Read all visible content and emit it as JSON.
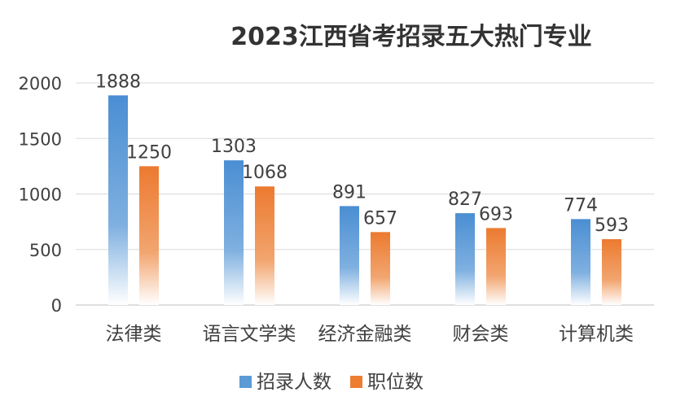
{
  "chart_data": {
    "type": "bar",
    "title": "2023江西省考招录五大热门专业",
    "categories": [
      "法律类",
      "语言文学类",
      "经济金融类",
      "财会类",
      "计算机类"
    ],
    "series": [
      {
        "name": "招录人数",
        "values": [
          1888,
          1303,
          891,
          827,
          774
        ],
        "color": "#5B9BD5"
      },
      {
        "name": "职位数",
        "values": [
          1250,
          1068,
          657,
          693,
          593
        ],
        "color": "#ED7D31"
      }
    ],
    "ylim": [
      0,
      2000
    ],
    "yticks": [
      "0",
      "500",
      "1000",
      "1500",
      "2000"
    ],
    "grid": true,
    "legend_position": "bottom"
  }
}
